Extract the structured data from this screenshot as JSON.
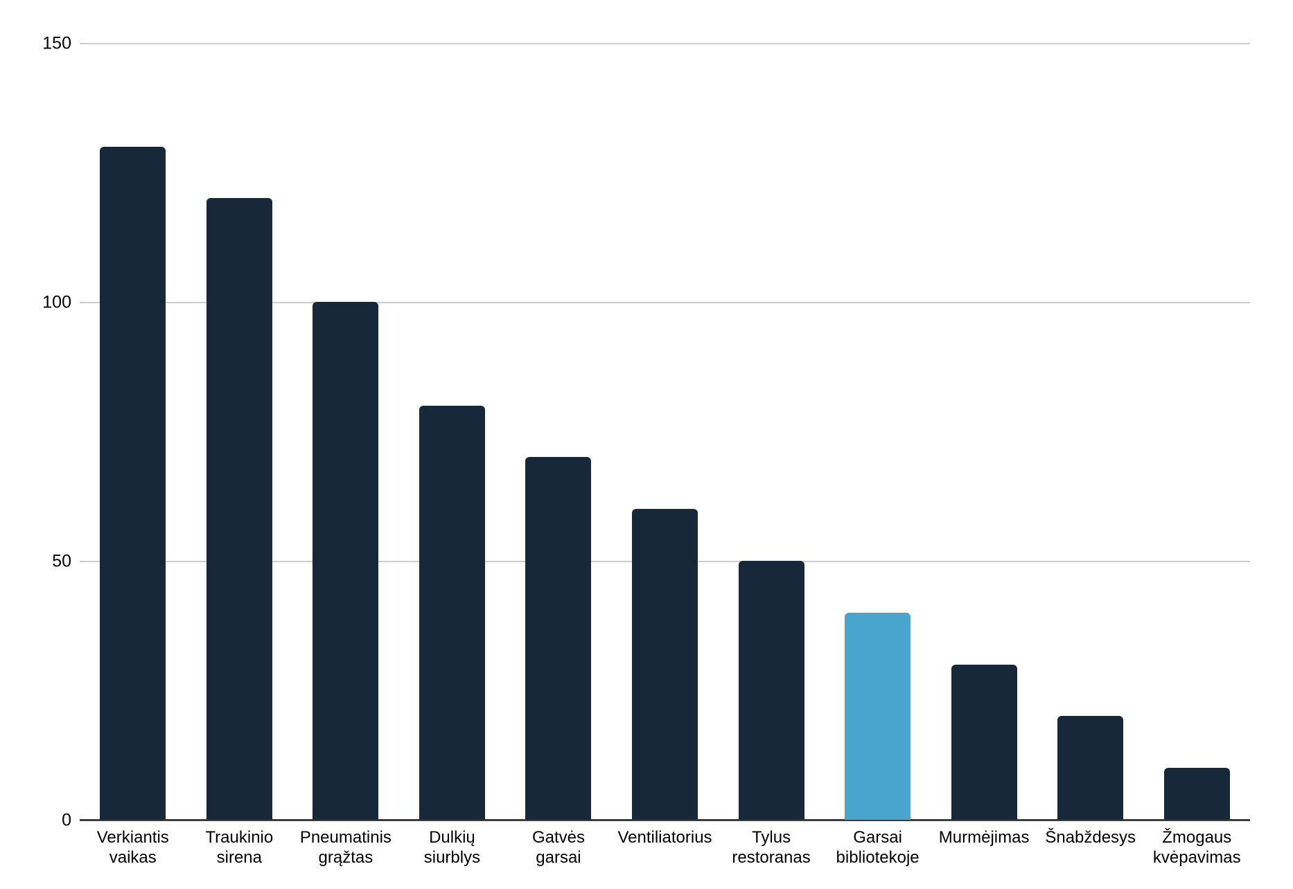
{
  "chart": {
    "background_color": "#ffffff",
    "bar_color": "#16283a",
    "highlight_color": "#4aa5ce",
    "gridline_color": "#cdcdcd",
    "axis_line_color": "#3d3d3d",
    "text_color": "#000000"
  },
  "chart_data": {
    "type": "bar",
    "title": "",
    "xlabel": "",
    "ylabel": "",
    "categories": [
      "Verkiantis vaikas",
      "Traukinio sirena",
      "Pneumatinis grąžtas",
      "Dulkių siurblys",
      "Gatvės garsai",
      "Ventiliatorius",
      "Tylus restoranas",
      "Garsai bibliotekoje",
      "Murmėjimas",
      "Šnabždesys",
      "Žmogaus kvėpavimas"
    ],
    "category_display": [
      "Verkiantis\nvaikas",
      "Traukinio\nsirena",
      "Pneumatinis\ngrąžtas",
      "Dulkių\nsiurblys",
      "Gatvės\ngarsai",
      "Ventiliatorius",
      "Tylus\nrestoranas",
      "Garsai\nbibliotekoje",
      "Murmėjimas",
      "Šnabždesys",
      "Žmogaus\nkvėpavimas"
    ],
    "values": [
      130,
      120,
      100,
      80,
      70,
      60,
      50,
      40,
      30,
      20,
      10
    ],
    "highlighted_index": 7,
    "highlighted_category": "Garsai bibliotekoje",
    "ylim": [
      0,
      150
    ],
    "yticks": [
      0,
      50,
      100,
      150
    ],
    "grid": true,
    "legend": false
  }
}
